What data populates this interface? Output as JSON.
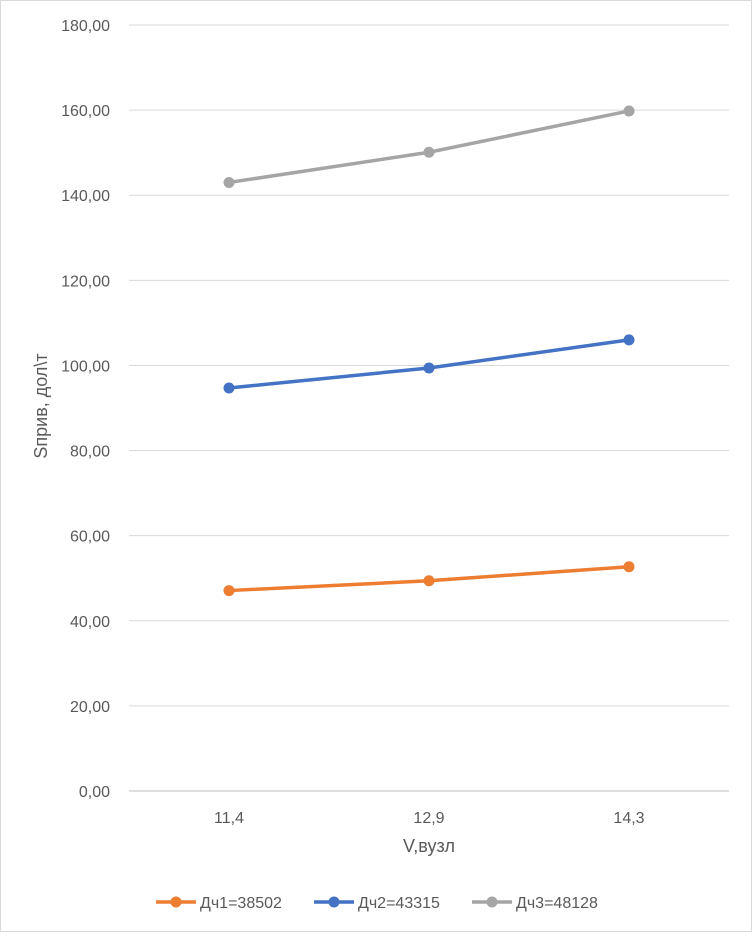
{
  "chart_data": {
    "type": "line",
    "title": "",
    "xlabel": "V,вузл",
    "ylabel": "Sприв, дол\\т",
    "categories": [
      "11,4",
      "12,9",
      "14,3"
    ],
    "ylim": [
      0,
      180
    ],
    "yticks": [
      "0,00",
      "20,00",
      "40,00",
      "60,00",
      "80,00",
      "100,00",
      "120,00",
      "140,00",
      "160,00",
      "180,00"
    ],
    "grid": true,
    "legend_position": "bottom",
    "series": [
      {
        "name": "Дч1=38502",
        "color": "#ed7d31",
        "values": [
          47.1,
          49.4,
          52.7
        ]
      },
      {
        "name": "Дч2=43315",
        "color": "#4472c4",
        "values": [
          94.7,
          99.4,
          106.0
        ]
      },
      {
        "name": "Дч3=48128",
        "color": "#a5a5a5",
        "values": [
          143.0,
          150.1,
          159.8
        ]
      }
    ]
  }
}
